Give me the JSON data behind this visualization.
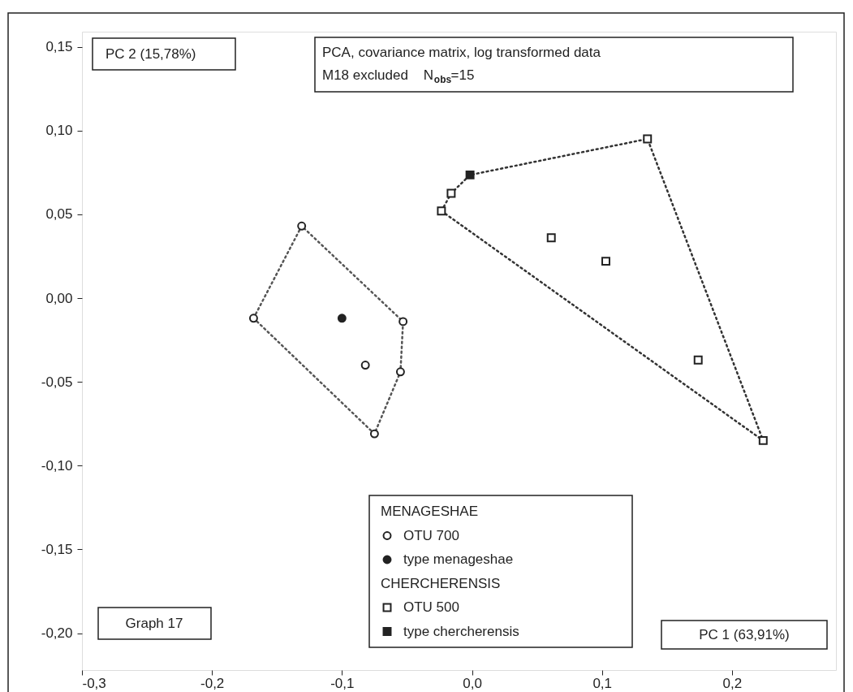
{
  "chart_data": {
    "type": "scatter",
    "title": "PCA, covariance matrix, log transformed data",
    "subtitle": "M18 excluded    N$_{obs}$=15",
    "xlabel": "PC 1 (63,91%)",
    "ylabel": "PC 2 (15,78%)",
    "annotations": [
      "Graph 17",
      "MENAGESHAE",
      "CHERCHERENSIS"
    ],
    "xlim": [
      -0.3,
      0.28
    ],
    "ylim": [
      -0.222,
      0.159
    ],
    "xticks": [
      {
        "value": -0.3,
        "label": "-0,3"
      },
      {
        "value": -0.2,
        "label": "-0,2"
      },
      {
        "value": -0.1,
        "label": "-0,1"
      },
      {
        "value": 0.0,
        "label": "0,0"
      },
      {
        "value": 0.1,
        "label": "0,1"
      },
      {
        "value": 0.2,
        "label": "0,2"
      }
    ],
    "yticks": [
      {
        "value": 0.15,
        "label": "0,15"
      },
      {
        "value": 0.1,
        "label": "0,10"
      },
      {
        "value": 0.05,
        "label": "0,05"
      },
      {
        "value": 0.0,
        "label": "0,00"
      },
      {
        "value": -0.05,
        "label": "-0,05"
      },
      {
        "value": -0.1,
        "label": "-0,10"
      },
      {
        "value": -0.15,
        "label": "-0,15"
      },
      {
        "value": -0.2,
        "label": "-0,20"
      }
    ],
    "grid": false,
    "legend": "bottom",
    "series": [
      {
        "type": "line",
        "color": "#555555",
        "line_style": "dotted",
        "marker": "none",
        "x": [
          -0.168,
          -0.131,
          -0.053
        ],
        "values": [
          -0.012,
          0.043,
          -0.014
        ]
      },
      {
        "type": "line",
        "color": "#555555",
        "line_style": "dotted",
        "marker": "none",
        "x": [
          -0.168,
          -0.075,
          -0.055,
          -0.053
        ],
        "values": [
          -0.012,
          -0.081,
          -0.044,
          -0.014
        ]
      },
      {
        "type": "line",
        "color": "#333333",
        "line_style": "dotted",
        "marker": "none",
        "x": [
          -0.0235,
          -0.016,
          -0.0015,
          0.135,
          0.224
        ],
        "values": [
          0.052,
          0.0625,
          0.0735,
          0.095,
          -0.085
        ]
      },
      {
        "type": "line",
        "color": "#333333",
        "line_style": "dotted",
        "marker": "none",
        "x": [
          -0.0235,
          0.224
        ],
        "values": [
          0.052,
          -0.085
        ]
      },
      {
        "name": "OTU 700",
        "color": "#ffffff",
        "marker": "circle",
        "x": [
          -0.131,
          -0.168,
          -0.053,
          -0.082,
          -0.055,
          -0.075
        ],
        "values": [
          0.043,
          -0.012,
          -0.014,
          -0.04,
          -0.044,
          -0.081
        ]
      },
      {
        "name": "type menageshae",
        "color": "#222222",
        "marker": "circle",
        "x": [
          -0.1
        ],
        "values": [
          -0.012
        ]
      },
      {
        "name": "OTU 500",
        "color": "#ffffff",
        "marker": "square",
        "x": [
          0.135,
          -0.016,
          -0.0235,
          0.061,
          0.103,
          0.174,
          0.224
        ],
        "values": [
          0.095,
          0.0625,
          0.052,
          0.036,
          0.022,
          -0.037,
          -0.085
        ]
      },
      {
        "name": "type chercherensis",
        "color": "#222222",
        "marker": "square",
        "x": [
          -0.0015
        ],
        "values": [
          0.0735
        ]
      }
    ]
  }
}
